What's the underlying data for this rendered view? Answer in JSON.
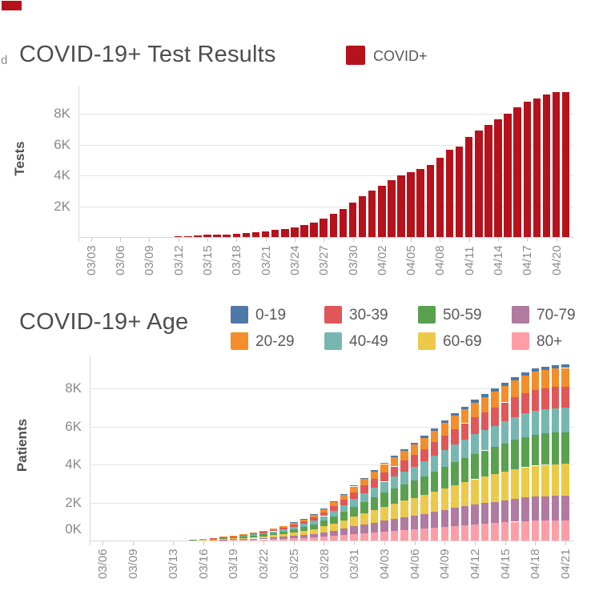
{
  "artifacts": {
    "stray_text": "d",
    "corner_block_color": "#b5121c"
  },
  "chart_data": [
    {
      "type": "bar",
      "title": "COVID-19+ Test Results",
      "ylabel": "Tests",
      "legend": [
        {
          "label": "COVID+",
          "color": "#b5121c"
        }
      ],
      "bar_color": "#b5121c",
      "ylim": [
        0,
        9800
      ],
      "grid": true,
      "yticks": [
        {
          "label": "2K",
          "value": 2000
        },
        {
          "label": "4K",
          "value": 4000
        },
        {
          "label": "6K",
          "value": 6000
        },
        {
          "label": "8K",
          "value": 8000
        }
      ],
      "x": [
        "03/03",
        "03/04",
        "03/05",
        "03/06",
        "03/07",
        "03/08",
        "03/09",
        "03/10",
        "03/11",
        "03/12",
        "03/13",
        "03/14",
        "03/15",
        "03/16",
        "03/17",
        "03/18",
        "03/19",
        "03/20",
        "03/21",
        "03/22",
        "03/23",
        "03/24",
        "03/25",
        "03/26",
        "03/27",
        "03/28",
        "03/29",
        "03/30",
        "03/31",
        "04/01",
        "04/02",
        "04/03",
        "04/04",
        "04/05",
        "04/06",
        "04/07",
        "04/08",
        "04/09",
        "04/10",
        "04/11",
        "04/12",
        "04/13",
        "04/14",
        "04/15",
        "04/16",
        "04/17",
        "04/18",
        "04/19",
        "04/20",
        "04/21"
      ],
      "x_tick_labels": [
        "03/03",
        "03/06",
        "03/09",
        "03/12",
        "03/15",
        "03/18",
        "03/21",
        "03/24",
        "03/27",
        "03/30",
        "04/02",
        "04/05",
        "04/08",
        "04/11",
        "04/14",
        "04/17",
        "04/20"
      ],
      "values": [
        0,
        0,
        0,
        0,
        0,
        0,
        0,
        10,
        20,
        30,
        60,
        100,
        150,
        160,
        180,
        230,
        270,
        320,
        370,
        490,
        540,
        640,
        770,
        930,
        1180,
        1500,
        1800,
        2260,
        2660,
        3010,
        3350,
        3700,
        4000,
        4200,
        4400,
        4700,
        5150,
        5670,
        5850,
        6490,
        6890,
        7270,
        7620,
        7990,
        8440,
        8800,
        9010,
        9270,
        9390,
        9420
      ]
    },
    {
      "type": "stacked-bar",
      "title": "COVID-19+ Age",
      "ylabel": "Patients",
      "legend_rows": [
        [
          "0-19",
          "30-39",
          "50-59",
          "70-79"
        ],
        [
          "20-29",
          "40-49",
          "60-69",
          "80+"
        ]
      ],
      "colors": {
        "0-19": "#4e79a7",
        "20-29": "#f28e2b",
        "30-39": "#e15759",
        "40-49": "#76b7b2",
        "50-59": "#59a14f",
        "60-69": "#edc949",
        "70-79": "#b07aa1",
        "80+": "#ff9da7"
      },
      "stack_order_bottom_to_top": [
        "80+",
        "70-79",
        "60-69",
        "50-59",
        "40-49",
        "30-39",
        "20-29",
        "0-19"
      ],
      "ylim": [
        0,
        9700
      ],
      "grid": true,
      "yticks": [
        {
          "label": "0K",
          "value": 0
        },
        {
          "label": "2K",
          "value": 2000
        },
        {
          "label": "4K",
          "value": 4000
        },
        {
          "label": "6K",
          "value": 6000
        },
        {
          "label": "8K",
          "value": 8000
        }
      ],
      "x": [
        "03/04",
        "03/05",
        "03/06",
        "03/07",
        "03/08",
        "03/09",
        "03/10",
        "03/11",
        "03/12",
        "03/13",
        "03/14",
        "03/15",
        "03/16",
        "03/17",
        "03/18",
        "03/19",
        "03/20",
        "03/21",
        "03/22",
        "03/23",
        "03/24",
        "03/25",
        "03/26",
        "03/27",
        "03/28",
        "03/29",
        "03/30",
        "03/31",
        "04/01",
        "04/02",
        "04/03",
        "04/04",
        "04/05",
        "04/06",
        "04/07",
        "04/08",
        "04/09",
        "04/10",
        "04/11",
        "04/12",
        "04/13",
        "04/14",
        "04/15",
        "04/16",
        "04/17",
        "04/18",
        "04/19",
        "04/20",
        "04/21"
      ],
      "x_tick_labels": [
        "03/06",
        "03/09",
        "03/13",
        "03/16",
        "03/19",
        "03/22",
        "03/25",
        "03/28",
        "03/31",
        "04/03",
        "04/06",
        "04/09",
        "04/12",
        "04/15",
        "04/18",
        "04/21"
      ],
      "series": [
        {
          "name": "0-19",
          "values": [
            0,
            0,
            0,
            0,
            0,
            0,
            0,
            1,
            1,
            1,
            2,
            2,
            2,
            3,
            4,
            5,
            7,
            8,
            10,
            13,
            16,
            19,
            23,
            28,
            34,
            41,
            49,
            58,
            66,
            74,
            82,
            89,
            96,
            103,
            110,
            118,
            126,
            134,
            141,
            148,
            154,
            160,
            166,
            172,
            177,
            181,
            183,
            184,
            185
          ]
        },
        {
          "name": "20-29",
          "values": [
            0,
            0,
            0,
            0,
            1,
            2,
            2,
            3,
            4,
            6,
            8,
            11,
            13,
            16,
            21,
            27,
            35,
            44,
            55,
            67,
            82,
            100,
            121,
            147,
            179,
            215,
            257,
            305,
            347,
            389,
            431,
            467,
            504,
            541,
            578,
            620,
            662,
            704,
            740,
            777,
            809,
            840,
            872,
            903,
            929,
            950,
            961,
            968,
            972
          ]
        },
        {
          "name": "30-39",
          "values": [
            0,
            0,
            0,
            0,
            1,
            2,
            2,
            4,
            5,
            7,
            10,
            12,
            14,
            18,
            24,
            31,
            40,
            50,
            62,
            77,
            94,
            114,
            138,
            168,
            204,
            246,
            294,
            348,
            396,
            444,
            492,
            534,
            576,
            618,
            660,
            708,
            756,
            804,
            846,
            888,
            924,
            960,
            996,
            1032,
            1062,
            1086,
            1098,
            1106,
            1111
          ]
        },
        {
          "name": "40-49",
          "values": [
            0,
            0,
            0,
            0,
            1,
            2,
            3,
            4,
            6,
            8,
            11,
            14,
            17,
            21,
            28,
            36,
            46,
            59,
            73,
            90,
            109,
            133,
            161,
            196,
            238,
            287,
            343,
            406,
            462,
            518,
            574,
            623,
            672,
            721,
            770,
            826,
            882,
            938,
            987,
            1036,
            1078,
            1120,
            1162,
            1204,
            1239,
            1267,
            1281,
            1291,
            1296
          ]
        },
        {
          "name": "50-59",
          "values": [
            0,
            0,
            0,
            0,
            2,
            3,
            4,
            5,
            7,
            11,
            14,
            18,
            22,
            27,
            36,
            47,
            59,
            76,
            94,
            115,
            140,
            171,
            207,
            252,
            306,
            369,
            441,
            522,
            594,
            666,
            738,
            801,
            864,
            927,
            990,
            1062,
            1134,
            1206,
            1269,
            1332,
            1386,
            1440,
            1494,
            1548,
            1593,
            1629,
            1647,
            1660,
            1667
          ]
        },
        {
          "name": "60-69",
          "values": [
            0,
            0,
            0,
            0,
            2,
            3,
            4,
            5,
            7,
            11,
            14,
            18,
            22,
            27,
            36,
            47,
            59,
            76,
            94,
            115,
            140,
            171,
            207,
            252,
            306,
            369,
            441,
            522,
            594,
            666,
            738,
            801,
            864,
            927,
            990,
            1062,
            1134,
            1206,
            1269,
            1332,
            1386,
            1440,
            1494,
            1548,
            1593,
            1629,
            1647,
            1660,
            1667
          ]
        },
        {
          "name": "70-79",
          "values": [
            0,
            0,
            0,
            0,
            1,
            2,
            3,
            4,
            6,
            8,
            11,
            14,
            17,
            21,
            28,
            36,
            46,
            59,
            73,
            90,
            109,
            133,
            161,
            196,
            238,
            287,
            343,
            406,
            462,
            518,
            574,
            623,
            672,
            721,
            770,
            826,
            882,
            938,
            987,
            1036,
            1078,
            1120,
            1162,
            1204,
            1239,
            1267,
            1281,
            1291,
            1296
          ]
        },
        {
          "name": "80+",
          "values": [
            0,
            0,
            0,
            0,
            1,
            2,
            2,
            3,
            5,
            7,
            9,
            12,
            14,
            17,
            23,
            30,
            38,
            48,
            60,
            74,
            90,
            109,
            132,
            161,
            196,
            236,
            282,
            334,
            380,
            426,
            472,
            512,
            552,
            592,
            633,
            679,
            725,
            771,
            811,
            851,
            886,
            920,
            955,
            989,
            1018,
            1041,
            1052,
            1060,
            1065
          ]
        }
      ]
    }
  ]
}
